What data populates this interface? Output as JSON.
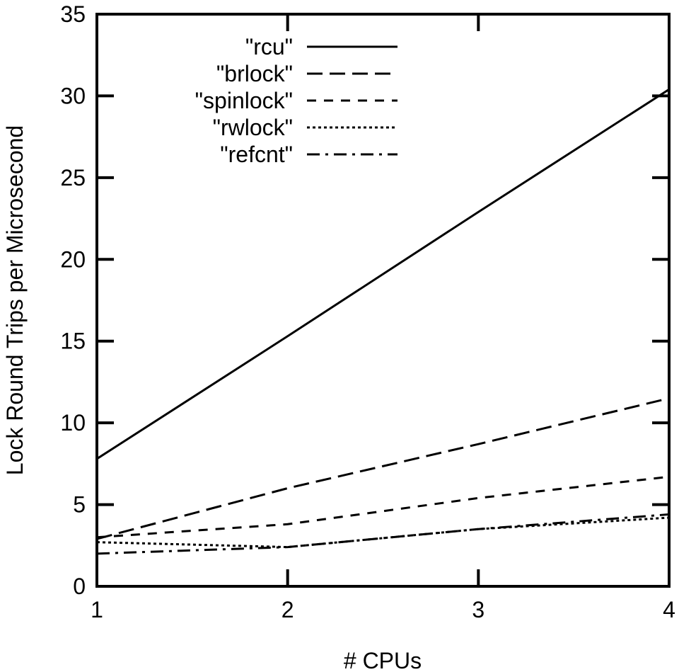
{
  "chart_data": {
    "type": "line",
    "title": "",
    "xlabel": "# CPUs",
    "ylabel": "Lock Round Trips per Microsecond",
    "xlim": [
      1,
      4
    ],
    "ylim": [
      0,
      35
    ],
    "xticks": [
      "1",
      "2",
      "3",
      "4"
    ],
    "yticks": [
      "0",
      "5",
      "10",
      "15",
      "20",
      "25",
      "30",
      "35"
    ],
    "grid": false,
    "legend_position": "top-center",
    "x": [
      1,
      2,
      3,
      4
    ],
    "series": [
      {
        "name": "\"rcu\"",
        "style": "solid",
        "values": [
          7.8,
          15.3,
          22.9,
          30.4
        ]
      },
      {
        "name": "\"brlock\"",
        "style": "long-dash",
        "values": [
          2.9,
          6.0,
          8.7,
          11.5
        ]
      },
      {
        "name": "\"spinlock\"",
        "style": "short-dash",
        "values": [
          3.0,
          3.8,
          5.4,
          6.7
        ]
      },
      {
        "name": "\"rwlock\"",
        "style": "dotted",
        "values": [
          2.7,
          2.4,
          3.5,
          4.2
        ]
      },
      {
        "name": "\"refcnt\"",
        "style": "dash-dot",
        "values": [
          2.0,
          2.4,
          3.5,
          4.4
        ]
      }
    ]
  }
}
